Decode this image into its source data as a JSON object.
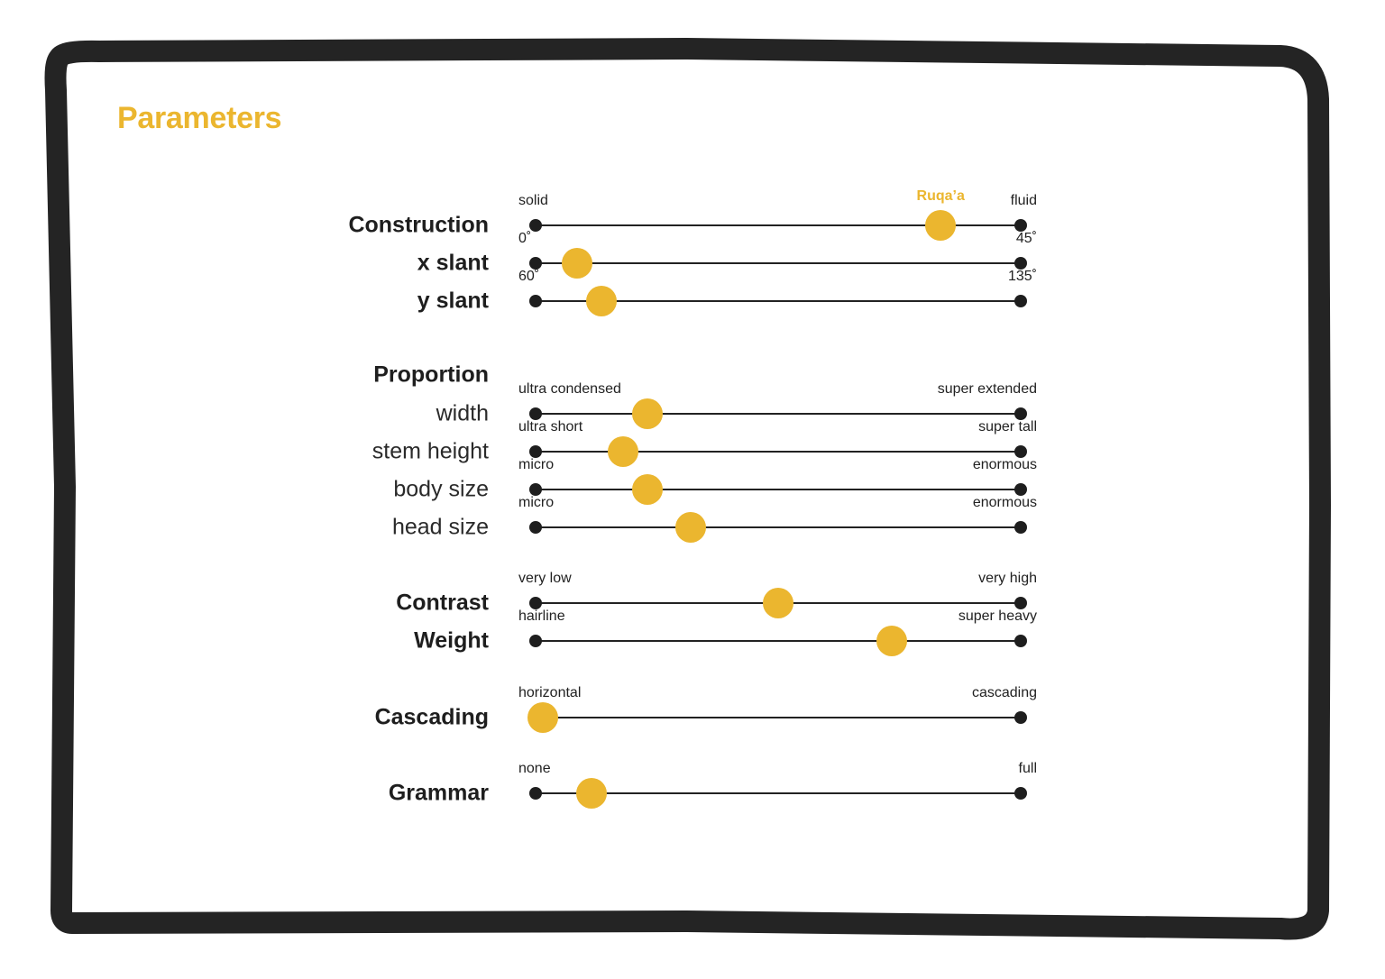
{
  "title": "Parameters",
  "accent_color": "#EBB62F",
  "ink_color": "#1e1e1e",
  "sliders": [
    {
      "label": "Construction",
      "style": "bold",
      "min_label": "solid",
      "max_label": "fluid",
      "value": 0.835,
      "marker": "Ruqa’a"
    },
    {
      "label": "x slant",
      "style": "bold",
      "min_label": "0˚",
      "max_label": "45˚",
      "value": 0.085
    },
    {
      "label": "y slant",
      "style": "bold",
      "min_label": "60˚",
      "max_label": "135˚",
      "value": 0.135
    },
    {
      "label": "Proportion",
      "style": "bold",
      "heading": true
    },
    {
      "label": "width",
      "style": "light",
      "min_label": "ultra condensed",
      "max_label": "super extended",
      "value": 0.23
    },
    {
      "label": "stem height",
      "style": "light",
      "min_label": "ultra short",
      "max_label": "super tall",
      "value": 0.18
    },
    {
      "label": "body size",
      "style": "light",
      "min_label": "micro",
      "max_label": "enormous",
      "value": 0.23
    },
    {
      "label": "head size",
      "style": "light",
      "min_label": "micro",
      "max_label": "enormous",
      "value": 0.32
    },
    {
      "label": "Contrast",
      "style": "bold",
      "min_label": "very low",
      "max_label": "very high",
      "value": 0.5
    },
    {
      "label": "Weight",
      "style": "bold",
      "min_label": "hairline",
      "max_label": "super heavy",
      "value": 0.735
    },
    {
      "label": "Cascading",
      "style": "bold",
      "min_label": "horizontal",
      "max_label": "cascading",
      "value": 0.015
    },
    {
      "label": "Grammar",
      "style": "bold",
      "min_label": "none",
      "max_label": "full",
      "value": 0.115
    }
  ]
}
